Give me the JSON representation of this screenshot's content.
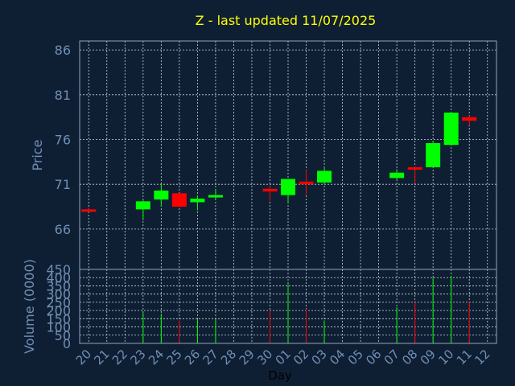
{
  "chart_data": {
    "type": "candlestick",
    "title": "Z - last updated 11/07/2025",
    "price_ylabel": "Price",
    "volume_ylabel": "Volume (0000)",
    "xlabel": "Day",
    "price_yticks": [
      66,
      71,
      76,
      81,
      86
    ],
    "price_ylim": [
      61.5,
      87
    ],
    "volume_yticks": [
      0,
      50,
      100,
      150,
      200,
      250,
      300,
      350,
      400,
      450
    ],
    "volume_ylim": [
      0,
      450
    ],
    "x_ticks": [
      "20",
      "21",
      "22",
      "23",
      "24",
      "25",
      "26",
      "27",
      "28",
      "29",
      "30",
      "01",
      "02",
      "03",
      "04",
      "05",
      "06",
      "07",
      "08",
      "09",
      "10",
      "11",
      "12"
    ],
    "candles": [
      {
        "day": "20",
        "open": 68.2,
        "high": 68.4,
        "low": 67.9,
        "close": 68.0,
        "volume": 0
      },
      {
        "day": "23",
        "open": 68.2,
        "high": 69.3,
        "low": 67.0,
        "close": 69.1,
        "volume": 185
      },
      {
        "day": "24",
        "open": 69.3,
        "high": 71.0,
        "low": 68.5,
        "close": 70.3,
        "volume": 180
      },
      {
        "day": "25",
        "open": 70.0,
        "high": 70.0,
        "low": 68.4,
        "close": 68.5,
        "volume": 140
      },
      {
        "day": "26",
        "open": 69.0,
        "high": 69.7,
        "low": 68.1,
        "close": 69.4,
        "volume": 150
      },
      {
        "day": "27",
        "open": 69.6,
        "high": 70.4,
        "low": 69.4,
        "close": 69.8,
        "volume": 150
      },
      {
        "day": "30",
        "open": 70.5,
        "high": 70.8,
        "low": 69.1,
        "close": 70.2,
        "volume": 200
      },
      {
        "day": "01",
        "open": 69.8,
        "high": 71.6,
        "low": 69.0,
        "close": 71.6,
        "volume": 360
      },
      {
        "day": "02",
        "open": 71.3,
        "high": 72.6,
        "low": 69.8,
        "close": 71.0,
        "volume": 210
      },
      {
        "day": "03",
        "open": 71.2,
        "high": 72.9,
        "low": 71.0,
        "close": 72.5,
        "volume": 140
      },
      {
        "day": "07",
        "open": 71.7,
        "high": 72.7,
        "low": 71.5,
        "close": 72.3,
        "volume": 220
      },
      {
        "day": "08",
        "open": 72.9,
        "high": 73.0,
        "low": 71.1,
        "close": 72.7,
        "volume": 250
      },
      {
        "day": "09",
        "open": 72.9,
        "high": 75.8,
        "low": 72.9,
        "close": 75.6,
        "volume": 400
      },
      {
        "day": "10",
        "open": 75.4,
        "high": 79.1,
        "low": 75.4,
        "close": 79.0,
        "volume": 410
      },
      {
        "day": "11",
        "open": 78.5,
        "high": 78.7,
        "low": 77.6,
        "close": 78.1,
        "volume": 255
      }
    ],
    "colors": {
      "background": "#0f1f33",
      "up": "#00ff00",
      "down": "#ff0000",
      "title": "#ffff00",
      "axis_text": "#6f8fb5",
      "grid": "#c8d2de"
    },
    "grid": true
  }
}
